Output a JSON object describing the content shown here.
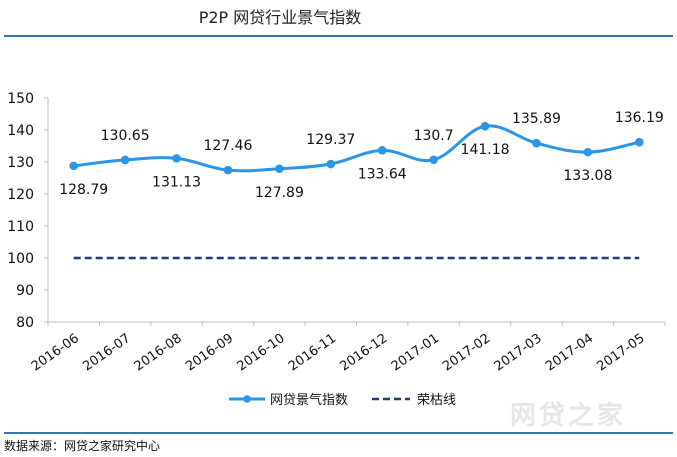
{
  "title": "P2P 网贷行业景气指数",
  "source": "数据来源：网贷之家研究中心",
  "watermark": "网贷之家",
  "colors": {
    "series": "#2b95e8",
    "baseline": "#1f3d7a",
    "rule": "#2f75c0",
    "axis": "#bfbfbf"
  },
  "chart_data": {
    "type": "line",
    "title": "P2P 网贷行业景气指数",
    "categories": [
      "2016-06",
      "2016-07",
      "2016-08",
      "2016-09",
      "2016-10",
      "2016-11",
      "2016-12",
      "2017-01",
      "2017-02",
      "2017-03",
      "2017-04",
      "2017-05"
    ],
    "ylim": [
      80,
      150
    ],
    "yticks": [
      "80",
      "90",
      "100",
      "110",
      "120",
      "130",
      "140",
      "150"
    ],
    "grid": false,
    "legend": "bottom",
    "series": [
      {
        "name": "网贷景气指数",
        "style": "solid-smooth-markers",
        "values": [
          128.79,
          130.65,
          131.13,
          127.46,
          127.89,
          129.37,
          133.64,
          130.7,
          141.18,
          135.89,
          133.08,
          136.19
        ],
        "labels": [
          "128.79",
          "130.65",
          "131.13",
          "127.46",
          "127.89",
          "129.37",
          "133.64",
          "130.7",
          "141.18",
          "135.89",
          "133.08",
          "136.19"
        ]
      },
      {
        "name": "荣枯线",
        "style": "dashed",
        "values": [
          100,
          100,
          100,
          100,
          100,
          100,
          100,
          100,
          100,
          100,
          100,
          100
        ]
      }
    ]
  }
}
